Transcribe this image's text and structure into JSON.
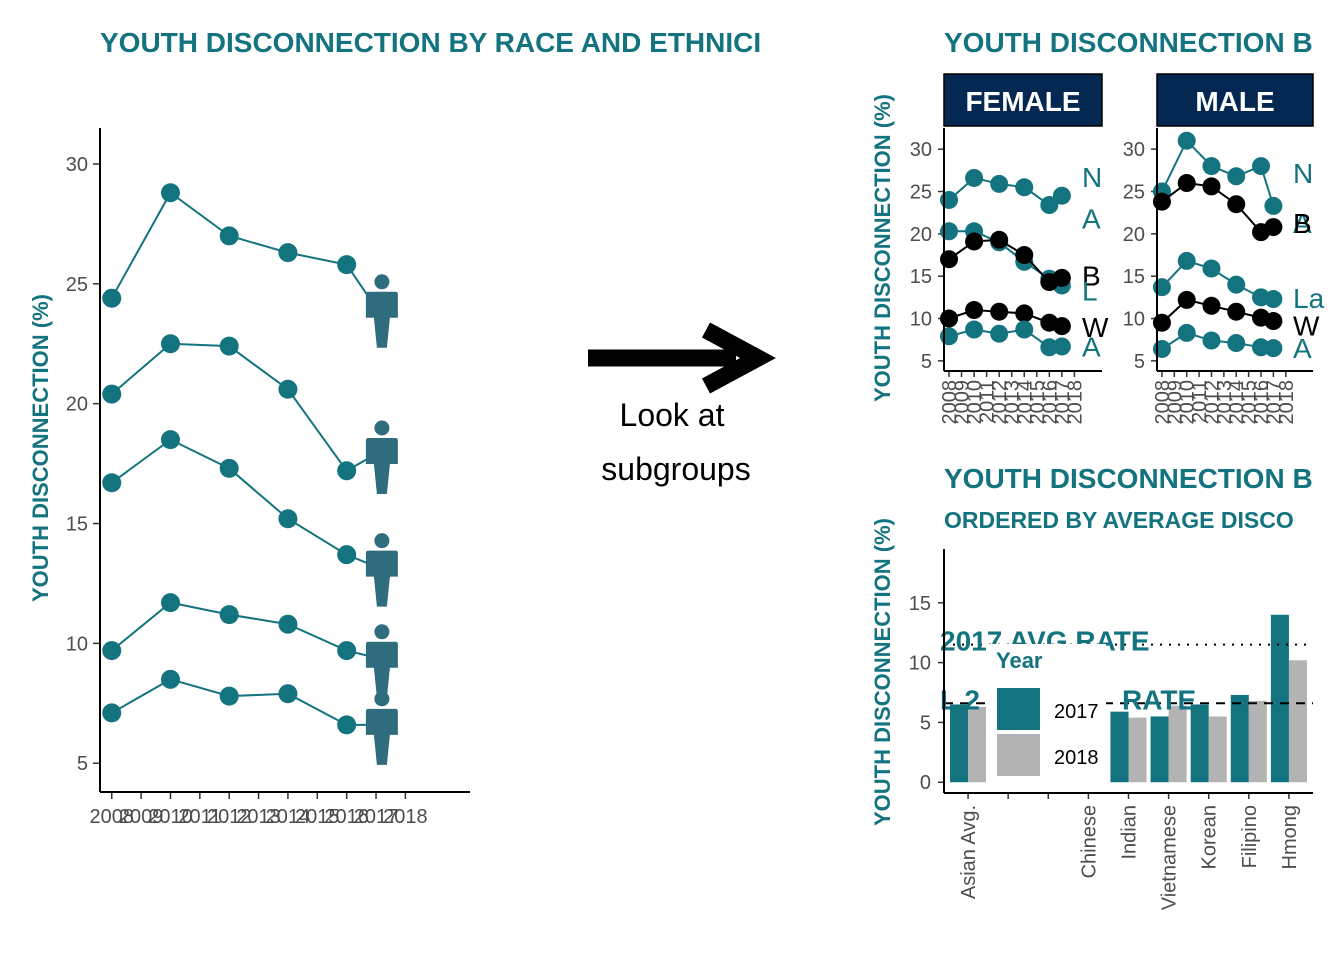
{
  "colors": {
    "teal": "#13737f",
    "black": "#000000",
    "grey": "#b3b3b3",
    "navy": "#052852",
    "person": "#2f6c7d"
  },
  "arrow_note": {
    "line1": "Look at",
    "line2": "subgroups"
  },
  "chart_data": [
    {
      "type": "line",
      "title": "YOUTH DISCONNECTION BY RACE AND ETHNICI",
      "ylabel": "YOUTH DISCONNECTION (%)",
      "ylim": [
        3.8,
        31.5
      ],
      "xlim": [
        2007.6,
        2020.2
      ],
      "y_ticks": [
        5,
        10,
        15,
        20,
        25,
        30
      ],
      "x_ticks": [
        2008,
        2009,
        2010,
        2011,
        2012,
        2013,
        2014,
        2015,
        2016,
        2017,
        2018
      ],
      "icon": "person-icon",
      "series": [
        {
          "x": [
            2008,
            2010,
            2012,
            2014,
            2016,
            2017
          ],
          "values": [
            24.4,
            28.8,
            27.0,
            26.3,
            25.8,
            24.0
          ]
        },
        {
          "x": [
            2008,
            2010,
            2012,
            2014,
            2016,
            2017
          ],
          "values": [
            20.4,
            22.5,
            22.4,
            20.6,
            17.2,
            17.9
          ]
        },
        {
          "x": [
            2008,
            2010,
            2012,
            2014,
            2016,
            2017
          ],
          "values": [
            16.7,
            18.5,
            17.3,
            15.2,
            13.7,
            13.2
          ]
        },
        {
          "x": [
            2008,
            2010,
            2012,
            2014,
            2016,
            2017
          ],
          "values": [
            9.7,
            11.7,
            11.2,
            10.8,
            9.7,
            9.4
          ]
        },
        {
          "x": [
            2008,
            2010,
            2012,
            2014,
            2016,
            2017
          ],
          "values": [
            7.1,
            8.5,
            7.8,
            7.9,
            6.6,
            6.6
          ]
        }
      ]
    },
    {
      "type": "line",
      "title": "YOUTH DISCONNECTION B",
      "ylabel": "YOUTH DISCONNECTION (%)",
      "ylim": [
        3.8,
        32.5
      ],
      "xlim": [
        2007.6,
        2020.2
      ],
      "y_ticks": [
        5,
        10,
        15,
        20,
        25,
        30
      ],
      "x_ticks": [
        2008,
        2009,
        2010,
        2011,
        2012,
        2013,
        2014,
        2015,
        2016,
        2017,
        2018
      ],
      "panels": [
        {
          "label": "FEMALE",
          "series": [
            {
              "name": "N",
              "color": "#13737f",
              "x": [
                2008,
                2010,
                2012,
                2014,
                2016,
                2017
              ],
              "values": [
                24.0,
                26.6,
                25.9,
                25.5,
                23.4,
                24.5
              ]
            },
            {
              "name": "A",
              "color": "#13737f",
              "x": [
                2008,
                2010,
                2012,
                2014,
                2016,
                2017
              ],
              "values": [
                20.3,
                20.3,
                19.0,
                16.7,
                14.7,
                13.9
              ]
            },
            {
              "name": "B",
              "color": "#000000",
              "x": [
                2008,
                2010,
                2012,
                2014,
                2016,
                2017
              ],
              "values": [
                17.0,
                19.1,
                19.3,
                17.5,
                14.3,
                14.8
              ]
            },
            {
              "name": "L",
              "color": "#13737f",
              "x": [
                2008,
                2010,
                2012,
                2014,
                2016,
                2017
              ],
              "values": [
                null,
                null,
                null,
                null,
                null,
                null
              ]
            },
            {
              "name": "W",
              "color": "#000000",
              "x": [
                2008,
                2010,
                2012,
                2014,
                2016,
                2017
              ],
              "values": [
                10.0,
                11.0,
                10.8,
                10.6,
                9.5,
                9.1
              ]
            },
            {
              "name": "A",
              "color": "#13737f",
              "x": [
                2008,
                2010,
                2012,
                2014,
                2016,
                2017
              ],
              "values": [
                7.9,
                8.7,
                8.2,
                8.7,
                6.6,
                6.7
              ]
            }
          ],
          "labels": [
            {
              "text": "N",
              "color": "#13737f",
              "y": 26.7
            },
            {
              "text": "A",
              "color": "#13737f",
              "y": 21.8
            },
            {
              "text": "B",
              "color": "#000000",
              "y": 15.1
            },
            {
              "text": "L",
              "color": "#13737f",
              "y": 13.3
            },
            {
              "text": "W",
              "color": "#000000",
              "y": 9.0
            },
            {
              "text": "A",
              "color": "#13737f",
              "y": 6.7
            }
          ]
        },
        {
          "label": "MALE",
          "series": [
            {
              "name": "N",
              "color": "#13737f",
              "x": [
                2008,
                2010,
                2012,
                2014,
                2016,
                2017
              ],
              "values": [
                25.0,
                31.0,
                28.0,
                26.8,
                28.0,
                23.3
              ]
            },
            {
              "name": "B",
              "color": "#000000",
              "x": [
                2008,
                2010,
                2012,
                2014,
                2016,
                2017
              ],
              "values": [
                23.8,
                26.0,
                25.6,
                23.5,
                20.2,
                20.8
              ]
            },
            {
              "name": "L",
              "color": "#13737f",
              "x": [
                2008,
                2010,
                2012,
                2014,
                2016,
                2017
              ],
              "values": [
                13.7,
                16.8,
                15.9,
                14.0,
                12.5,
                12.3
              ]
            },
            {
              "name": "W",
              "color": "#000000",
              "x": [
                2008,
                2010,
                2012,
                2014,
                2016,
                2017
              ],
              "values": [
                9.5,
                12.2,
                11.5,
                10.8,
                10.1,
                9.7
              ]
            },
            {
              "name": "A",
              "color": "#13737f",
              "x": [
                2008,
                2010,
                2012,
                2014,
                2016,
                2017
              ],
              "values": [
                6.4,
                8.3,
                7.4,
                7.1,
                6.6,
                6.5
              ]
            }
          ],
          "labels": [
            {
              "text": "N",
              "color": "#13737f",
              "y": 27.2
            },
            {
              "text": "A",
              "color": "#13737f",
              "y": 21.3
            },
            {
              "text": "B",
              "color": "#000000",
              "y": 21.3
            },
            {
              "text": "La",
              "color": "#13737f",
              "y": 12.4
            },
            {
              "text": "W",
              "color": "#000000",
              "y": 9.2
            },
            {
              "text": "A",
              "color": "#13737f",
              "y": 6.5
            }
          ]
        }
      ]
    },
    {
      "type": "bar",
      "title": "YOUTH DISCONNECTION B",
      "subtitle": "ORDERED BY AVERAGE DISCO",
      "ylabel": "YOUTH DISCONNECTION (%)",
      "ylim": [
        -0.9,
        19.5
      ],
      "y_ticks": [
        0,
        5,
        10,
        15
      ],
      "categories": [
        "Asian Avg.",
        "",
        "",
        "Chinese",
        "Indian",
        "Vietnamese",
        "Korean",
        "Filipino",
        "Hmong"
      ],
      "series": [
        {
          "name": "2017",
          "color": "#13737f",
          "values": [
            6.5,
            null,
            null,
            null,
            5.9,
            5.5,
            6.5,
            7.3,
            14.0
          ]
        },
        {
          "name": "2018",
          "color": "#b3b3b3",
          "values": [
            6.3,
            null,
            null,
            null,
            5.4,
            6.4,
            5.5,
            6.8,
            10.2
          ]
        }
      ],
      "reference_lines": [
        {
          "label": "2017 AVG RATE",
          "value": 11.5,
          "style": "dotted"
        },
        {
          "label": "L 2",
          "label_tail": "RATE",
          "value": 6.6,
          "style": "dashed"
        }
      ],
      "legend": {
        "title": "Year",
        "placement": "top-left",
        "entries": [
          "2017",
          "2018"
        ]
      }
    }
  ]
}
